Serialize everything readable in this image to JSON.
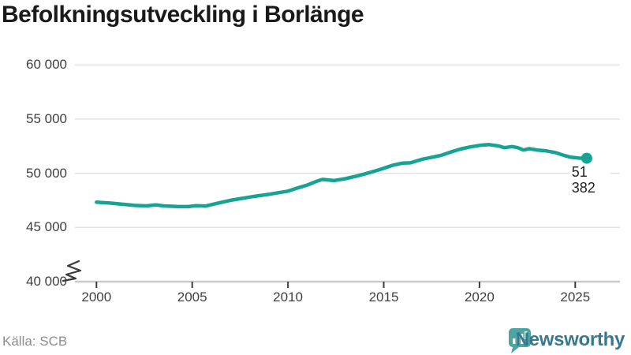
{
  "header": {
    "title": "Befolkningsutveckling i Borlänge"
  },
  "footer": {
    "source": "Källa: SCB",
    "brand_name": "Newsworthy"
  },
  "logo": {
    "icon": "bar-chart-speech-bubble-icon",
    "icon_color": "#4ca5a1",
    "text_color": "#35788f"
  },
  "chart_data": {
    "type": "line",
    "title": "Befolkningsutveckling i Borlänge",
    "xlabel": "",
    "ylabel": "",
    "grid": true,
    "legend": "none",
    "axis_break_bottom_left": true,
    "xlim": [
      1998.9,
      2027.3
    ],
    "ylim": [
      40000,
      61000
    ],
    "x_ticks": [
      {
        "value": 2000,
        "label": "2000"
      },
      {
        "value": 2005,
        "label": "2005"
      },
      {
        "value": 2010,
        "label": "2010"
      },
      {
        "value": 2015,
        "label": "2015"
      },
      {
        "value": 2020,
        "label": "2020"
      },
      {
        "value": 2025,
        "label": "2025"
      }
    ],
    "y_ticks": [
      {
        "value": 40000,
        "label": "40 000"
      },
      {
        "value": 45000,
        "label": "45 000"
      },
      {
        "value": 50000,
        "label": "50 000"
      },
      {
        "value": 55000,
        "label": "55 000"
      },
      {
        "value": 60000,
        "label": "60 000"
      }
    ],
    "series": [
      {
        "name": "Befolkning",
        "color": "#16a394",
        "points": [
          [
            2000.0,
            47330
          ],
          [
            2000.7,
            47250
          ],
          [
            2001.3,
            47150
          ],
          [
            2002.0,
            47030
          ],
          [
            2002.6,
            46990
          ],
          [
            2003.1,
            47080
          ],
          [
            2003.5,
            46990
          ],
          [
            2004.2,
            46930
          ],
          [
            2004.8,
            46920
          ],
          [
            2005.2,
            47010
          ],
          [
            2005.7,
            46970
          ],
          [
            2006.2,
            47180
          ],
          [
            2007.0,
            47500
          ],
          [
            2007.5,
            47650
          ],
          [
            2008.0,
            47800
          ],
          [
            2008.5,
            47930
          ],
          [
            2009.0,
            48060
          ],
          [
            2009.5,
            48200
          ],
          [
            2010.0,
            48350
          ],
          [
            2010.5,
            48640
          ],
          [
            2011.0,
            48910
          ],
          [
            2011.5,
            49260
          ],
          [
            2011.8,
            49430
          ],
          [
            2012.1,
            49380
          ],
          [
            2012.4,
            49320
          ],
          [
            2013.0,
            49500
          ],
          [
            2013.5,
            49700
          ],
          [
            2014.0,
            49930
          ],
          [
            2014.5,
            50180
          ],
          [
            2015.0,
            50460
          ],
          [
            2015.5,
            50750
          ],
          [
            2016.0,
            50940
          ],
          [
            2016.4,
            50960
          ],
          [
            2017.0,
            51290
          ],
          [
            2017.5,
            51470
          ],
          [
            2018.0,
            51650
          ],
          [
            2018.5,
            51960
          ],
          [
            2019.0,
            52230
          ],
          [
            2019.5,
            52420
          ],
          [
            2020.0,
            52570
          ],
          [
            2020.5,
            52645
          ],
          [
            2021.0,
            52520
          ],
          [
            2021.3,
            52360
          ],
          [
            2021.7,
            52460
          ],
          [
            2022.0,
            52360
          ],
          [
            2022.3,
            52140
          ],
          [
            2022.6,
            52260
          ],
          [
            2023.0,
            52150
          ],
          [
            2023.5,
            52060
          ],
          [
            2024.0,
            51890
          ],
          [
            2024.4,
            51650
          ],
          [
            2024.8,
            51470
          ],
          [
            2025.2,
            51400
          ],
          [
            2025.6,
            51382
          ]
        ]
      }
    ],
    "end_annotation": {
      "label": "51 382",
      "year": 2025.6,
      "value": 51382
    }
  }
}
